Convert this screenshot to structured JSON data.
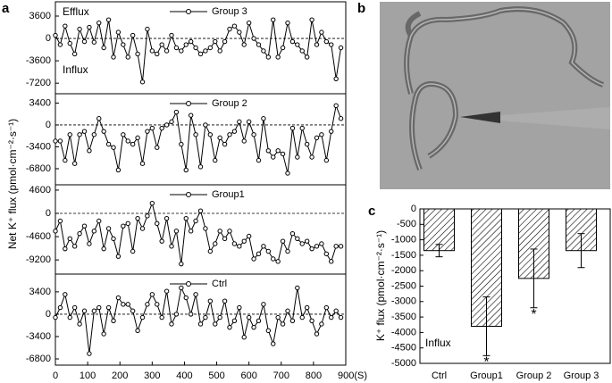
{
  "chart_data": [
    {
      "type": "line",
      "panel": "a",
      "y_label": "Net K⁺ flux (pmol·cm⁻²·s⁻¹)",
      "xlim": [
        0,
        900
      ],
      "xticks": [
        0,
        100,
        200,
        300,
        400,
        500,
        600,
        700,
        800,
        {
          "value": 900,
          "label": "900(S)"
        }
      ],
      "x": [
        0,
        15,
        30,
        45,
        60,
        75,
        90,
        105,
        120,
        135,
        150,
        165,
        180,
        195,
        210,
        225,
        240,
        255,
        270,
        285,
        300,
        315,
        330,
        345,
        360,
        375,
        390,
        405,
        420,
        435,
        450,
        465,
        480,
        495,
        510,
        525,
        540,
        555,
        570,
        585,
        600,
        615,
        630,
        645,
        660,
        675,
        690,
        705,
        720,
        735,
        750,
        765,
        780,
        795,
        810,
        825,
        840,
        855,
        870,
        885
      ],
      "subplots": [
        {
          "ylim": [
            -8900,
            5900
          ],
          "yticks": [
            3600,
            0,
            -3600,
            -7200
          ],
          "annotations": [
            "Efflux",
            "Influx"
          ],
          "series": [
            {
              "name": "Group 3",
              "color": "#000000",
              "values": [
                500,
                -1000,
                2000,
                -800,
                -2500,
                1500,
                -500,
                1800,
                -600,
                2500,
                -1500,
                3000,
                -3000,
                1000,
                -1000,
                -3000,
                500,
                -2500,
                -7000,
                1500,
                -2000,
                -2500,
                -1000,
                -2000,
                500,
                -1500,
                -2000,
                -1000,
                -500,
                -1500,
                -2500,
                -2000,
                -1500,
                -500,
                -2000,
                -500,
                1500,
                2000,
                1000,
                -1000,
                2500,
                0,
                -1000,
                -2000,
                -3000,
                3000,
                -3000,
                -1500,
                2500,
                -500,
                -1000,
                -2000,
                -3000,
                3000,
                -1000,
                1000,
                -500,
                -1000,
                -6500,
                -1500
              ]
            }
          ]
        },
        {
          "ylim": [
            -9300,
            4850
          ],
          "yticks": [
            3400,
            0,
            -3400,
            -6800
          ],
          "series": [
            {
              "name": "Group 2",
              "color": "#000000",
              "values": [
                -2500,
                -2500,
                -5500,
                -1500,
                -6000,
                -1500,
                -1000,
                -4000,
                -1500,
                1000,
                -1000,
                -3000,
                -3500,
                -7000,
                -1500,
                -2500,
                -3000,
                -2000,
                -6000,
                -1000,
                -500,
                -3500,
                -500,
                0,
                500,
                2000,
                -3000,
                -7000,
                1500,
                -1500,
                -6500,
                0,
                -1500,
                -5500,
                -2000,
                -3000,
                -1500,
                -1000,
                500,
                -2500,
                500,
                -1500,
                -5500,
                1000,
                -4000,
                -5000,
                -4000,
                -4500,
                -7500,
                -500,
                -5000,
                -500,
                -3000,
                -5000,
                -2000,
                -1500,
                -5500,
                -1000,
                3000,
                1000
              ]
            }
          ]
        },
        {
          "ylim": [
            -12000,
            5650
          ],
          "yticks": [
            4600,
            0,
            -4600,
            -9200
          ],
          "series": [
            {
              "name": "Group1",
              "color": "#000000",
              "values": [
                -3500,
                -1500,
                -7000,
                -5000,
                -6500,
                -4000,
                -2500,
                -6000,
                -3500,
                -1500,
                -7000,
                -3000,
                -5000,
                -8500,
                -2500,
                -2000,
                -7500,
                -1000,
                -3000,
                -500,
                2000,
                -2000,
                -5500,
                -1000,
                -6500,
                -3500,
                -10000,
                -1000,
                -3500,
                -1500,
                500,
                -3000,
                -7500,
                -6000,
                -3500,
                -5000,
                -3500,
                -6000,
                -6500,
                -5500,
                -4500,
                -9000,
                -8000,
                -6500,
                -7500,
                -9000,
                -9500,
                -5500,
                -7500,
                -4000,
                -5000,
                -6000,
                -5500,
                -7000,
                -6500,
                -6000,
                -8000,
                -9500,
                -6500,
                -6500
              ]
            }
          ]
        },
        {
          "ylim": [
            -7750,
            6100
          ],
          "yticks": [
            3400,
            0,
            -3400,
            -6800
          ],
          "series": [
            {
              "name": "Ctrl",
              "color": "#000000",
              "values": [
                -500,
                1000,
                3000,
                -500,
                1000,
                -1500,
                500,
                -6000,
                500,
                1000,
                -3000,
                1000,
                -1000,
                2500,
                1500,
                1500,
                500,
                -2500,
                -500,
                1500,
                3000,
                1500,
                -500,
                3500,
                -1500,
                0,
                4000,
                2500,
                0,
                3000,
                -1500,
                -500,
                2000,
                -1500,
                -500,
                2000,
                -2000,
                -1000,
                1000,
                -3500,
                -500,
                -2000,
                -1000,
                1500,
                -2500,
                -4500,
                -500,
                -1500,
                500,
                -1000,
                4000,
                -500,
                1000,
                -1000,
                -3000,
                -1500,
                1000,
                -500,
                500,
                -500
              ]
            }
          ]
        }
      ]
    },
    {
      "type": "image",
      "panel": "b"
    },
    {
      "type": "bar",
      "panel": "c",
      "y_label": "K⁺ flux (pmol·cm⁻²·s⁻¹)",
      "annotations": [
        "Influx"
      ],
      "categories": [
        "Ctrl",
        "Group1",
        "Group 2",
        "Group 3"
      ],
      "values": [
        -1350,
        -3800,
        -2250,
        -1350
      ],
      "errors": [
        200,
        950,
        950,
        550
      ],
      "significance_labels": [
        null,
        "*",
        "*",
        null
      ],
      "ylim": [
        -5000,
        0
      ],
      "yticks": [
        0,
        -500,
        -1000,
        -1500,
        -2000,
        -2500,
        -3000,
        -3500,
        -4000,
        -4500,
        -5000
      ],
      "color": "#000000"
    }
  ]
}
